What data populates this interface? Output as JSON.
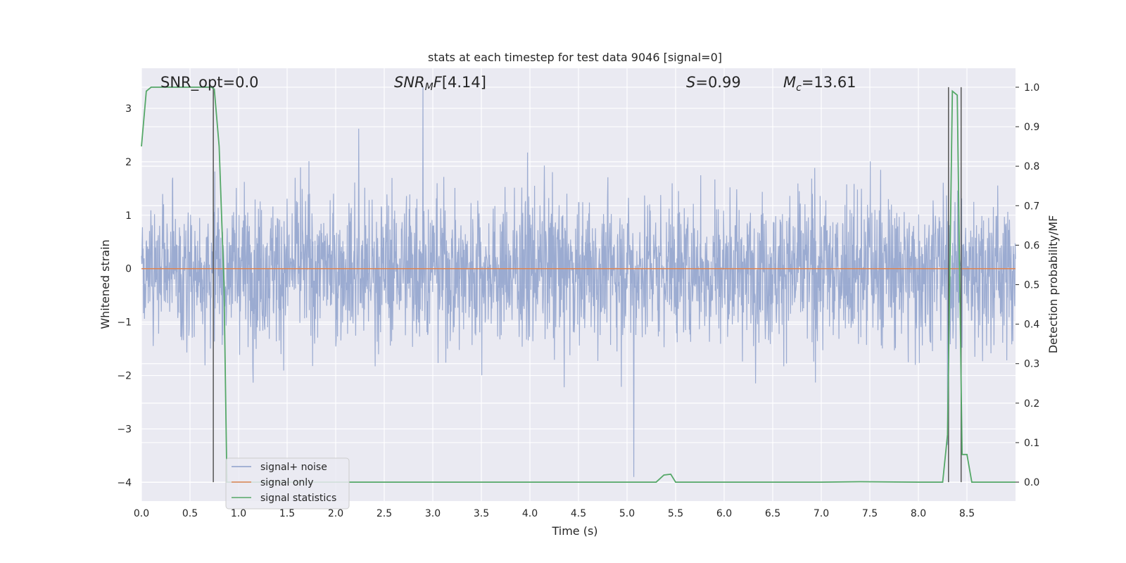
{
  "chart_data": {
    "type": "line",
    "title": "stats at each timestep for test data 9046 [signal=0]",
    "xlabel": "Time (s)",
    "ylabel": "Whitened strain",
    "ylabel_right": "Detection probability/MF",
    "xlim": [
      0.0,
      9.0
    ],
    "ylim": [
      -4.35,
      3.75
    ],
    "ylim_right": [
      -0.048,
      1.048
    ],
    "x_ticks": [
      "0.0",
      "0.5",
      "1.0",
      "1.5",
      "2.0",
      "2.5",
      "3.0",
      "3.5",
      "4.0",
      "4.5",
      "5.0",
      "5.5",
      "6.0",
      "6.5",
      "7.0",
      "7.5",
      "8.0",
      "8.5"
    ],
    "y_ticks": [
      "3",
      "2",
      "1",
      "0",
      "−1",
      "−2",
      "−3",
      "−4"
    ],
    "y_ticks_right": [
      "1.0",
      "0.9",
      "0.8",
      "0.7",
      "0.6",
      "0.5",
      "0.4",
      "0.3",
      "0.2",
      "0.1",
      "0.0"
    ],
    "grid": true,
    "legend_placement": "lower-left",
    "annotations": {
      "snr_opt": "SNR_opt=0.0",
      "snr_mf": "[4.14]",
      "s_value": "=0.99",
      "mc_value": "=13.61"
    },
    "series": [
      {
        "name": "signal+ noise",
        "color": "#8da0cb",
        "kind": "noise",
        "x_range": [
          0.0,
          9.0
        ],
        "core_range": [
          -1.0,
          1.0
        ],
        "spike_range": [
          -3.3,
          3.4
        ],
        "notable_peaks": [
          [
            2.9,
            3.4
          ],
          [
            5.07,
            -3.9
          ],
          [
            8.3,
            -3.3
          ]
        ]
      },
      {
        "name": "signal only",
        "color": "#dd8452",
        "x": [
          0.0,
          9.0
        ],
        "y": [
          0.0,
          0.0
        ]
      },
      {
        "name": "signal statistics",
        "color": "#55a868",
        "axis": "right",
        "x": [
          0.0,
          0.05,
          0.1,
          0.2,
          0.4,
          0.6,
          0.72,
          0.75,
          0.8,
          0.85,
          0.88,
          1.0,
          2.0,
          3.0,
          4.0,
          5.0,
          5.3,
          5.38,
          5.45,
          5.5,
          6.0,
          7.0,
          7.4,
          8.0,
          8.25,
          8.3,
          8.35,
          8.4,
          8.45,
          8.5,
          8.55,
          9.0
        ],
        "y": [
          0.85,
          0.99,
          1.0,
          1.0,
          1.0,
          1.0,
          1.0,
          0.995,
          0.85,
          0.5,
          0.0,
          0.0,
          0.0,
          0.0,
          0.0,
          0.0,
          0.0,
          0.018,
          0.02,
          0.0,
          0.0,
          0.0,
          0.001,
          0.0,
          0.0,
          0.12,
          0.99,
          0.98,
          0.07,
          0.07,
          0.0,
          0.0
        ]
      }
    ],
    "vertical_markers": [
      0.74,
      8.31,
      8.44
    ]
  }
}
